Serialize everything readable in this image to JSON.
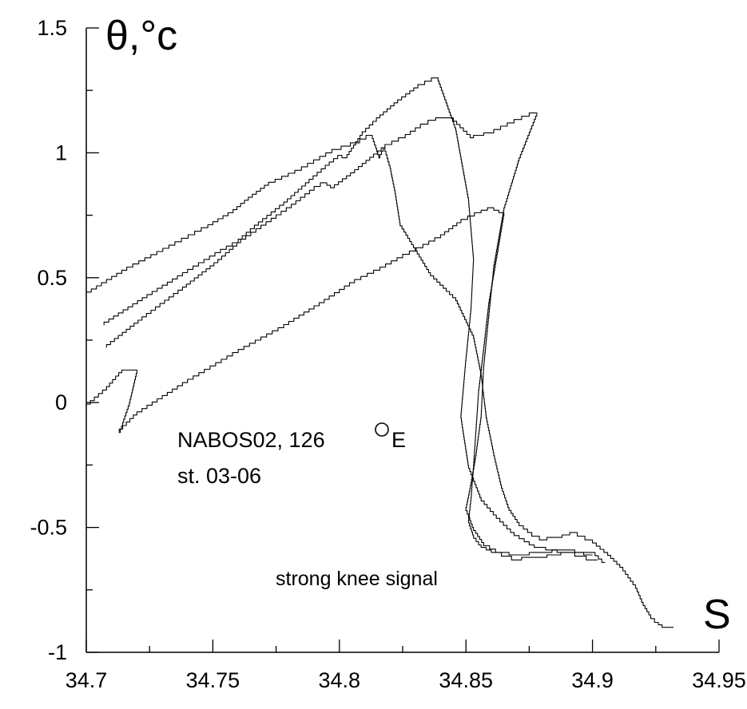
{
  "chart_data": {
    "type": "line",
    "ylabel": "θ,°c",
    "xlabel": "S",
    "xlim": [
      34.7,
      34.95
    ],
    "ylim": [
      -1,
      1.5
    ],
    "x_ticks": [
      "34.7",
      "34.75",
      "34.8",
      "34.85",
      "34.9",
      "34.95"
    ],
    "y_ticks": [
      "-1",
      "-0.5",
      "0",
      "0.5",
      "1",
      "1.5"
    ],
    "grid": false,
    "annotations": [
      {
        "text": "NABOS02, 126",
        "x": 34.737,
        "y": -0.16
      },
      {
        "text": "E",
        "x": 34.826,
        "y": -0.16
      },
      {
        "text": "st. 03-06",
        "x": 34.737,
        "y": -0.32
      },
      {
        "text": "strong knee signal",
        "x": 34.775,
        "y": -0.73
      }
    ],
    "series": [
      {
        "x": [
          34.7,
          34.716,
          34.735,
          34.748,
          34.758,
          34.764,
          34.772,
          34.785,
          34.797,
          34.808,
          34.813,
          34.816,
          34.818,
          34.82,
          34.822,
          34.824,
          34.83,
          34.836,
          34.846,
          34.853,
          34.856,
          34.858,
          34.861,
          34.864,
          34.867,
          34.871,
          34.876,
          34.882,
          34.888,
          34.894,
          34.9,
          34.906,
          34.912,
          34.917,
          34.92,
          34.923,
          34.926,
          34.929,
          34.932
        ],
        "y": [
          0.43,
          0.53,
          0.63,
          0.7,
          0.76,
          0.81,
          0.87,
          0.93,
          1.0,
          1.04,
          1.07,
          0.98,
          1.02,
          0.95,
          0.85,
          0.72,
          0.62,
          0.52,
          0.42,
          0.27,
          0.12,
          -0.05,
          -0.2,
          -0.33,
          -0.42,
          -0.48,
          -0.52,
          -0.55,
          -0.54,
          -0.52,
          -0.55,
          -0.6,
          -0.66,
          -0.73,
          -0.8,
          -0.85,
          -0.88,
          -0.9,
          -0.9
        ]
      },
      {
        "x": [
          34.707,
          34.724,
          34.74,
          34.753,
          34.76,
          34.768,
          34.778,
          34.788,
          34.796,
          34.801,
          34.803,
          34.809,
          34.816,
          34.823,
          34.831,
          34.839,
          34.846,
          34.851,
          34.853,
          34.852,
          34.85,
          34.848,
          34.851,
          34.856,
          34.862,
          34.869,
          34.877,
          34.886,
          34.894,
          34.901,
          34.905
        ],
        "y": [
          0.31,
          0.42,
          0.52,
          0.6,
          0.64,
          0.71,
          0.79,
          0.88,
          0.95,
          0.99,
          0.98,
          1.07,
          1.14,
          1.2,
          1.26,
          1.3,
          1.1,
          0.82,
          0.58,
          0.38,
          0.18,
          -0.05,
          -0.25,
          -0.38,
          -0.45,
          -0.52,
          -0.57,
          -0.59,
          -0.6,
          -0.6,
          -0.64
        ]
      },
      {
        "x": [
          34.708,
          34.722,
          34.738,
          34.752,
          34.761,
          34.771,
          34.781,
          34.79,
          34.795,
          34.798,
          34.806,
          34.812,
          34.818,
          34.826,
          34.832,
          34.838,
          34.845,
          34.853,
          34.861,
          34.869,
          34.878,
          34.871,
          34.865,
          34.861,
          34.859,
          34.857,
          34.856,
          34.854,
          34.852,
          34.85,
          34.853,
          34.857,
          34.864,
          34.872,
          34.882,
          34.893,
          34.902
        ],
        "y": [
          0.22,
          0.33,
          0.45,
          0.56,
          0.64,
          0.71,
          0.78,
          0.85,
          0.88,
          0.86,
          0.92,
          0.97,
          1.02,
          1.06,
          1.1,
          1.13,
          1.14,
          1.06,
          1.08,
          1.12,
          1.16,
          0.98,
          0.78,
          0.55,
          0.35,
          0.15,
          -0.05,
          -0.2,
          -0.32,
          -0.42,
          -0.5,
          -0.56,
          -0.6,
          -0.63,
          -0.62,
          -0.6,
          -0.63
        ]
      },
      {
        "x": [
          34.7,
          34.708,
          34.714,
          34.72,
          34.717,
          34.713,
          34.72,
          34.74,
          34.76,
          34.778,
          34.794,
          34.806,
          34.816,
          34.825,
          34.833,
          34.84,
          34.848,
          34.856,
          34.861,
          34.865,
          34.862,
          34.859,
          34.857,
          34.855,
          34.854,
          34.853,
          34.852,
          34.851,
          34.853,
          34.856,
          34.86,
          34.867,
          34.875,
          34.884,
          34.893,
          34.9
        ],
        "y": [
          -0.02,
          0.05,
          0.12,
          0.13,
          0.0,
          -0.12,
          -0.05,
          0.08,
          0.2,
          0.3,
          0.4,
          0.48,
          0.53,
          0.58,
          0.62,
          0.66,
          0.72,
          0.76,
          0.78,
          0.76,
          0.58,
          0.4,
          0.22,
          0.05,
          -0.1,
          -0.25,
          -0.38,
          -0.47,
          -0.53,
          -0.57,
          -0.59,
          -0.6,
          -0.61,
          -0.6,
          -0.59,
          -0.61
        ]
      }
    ]
  }
}
